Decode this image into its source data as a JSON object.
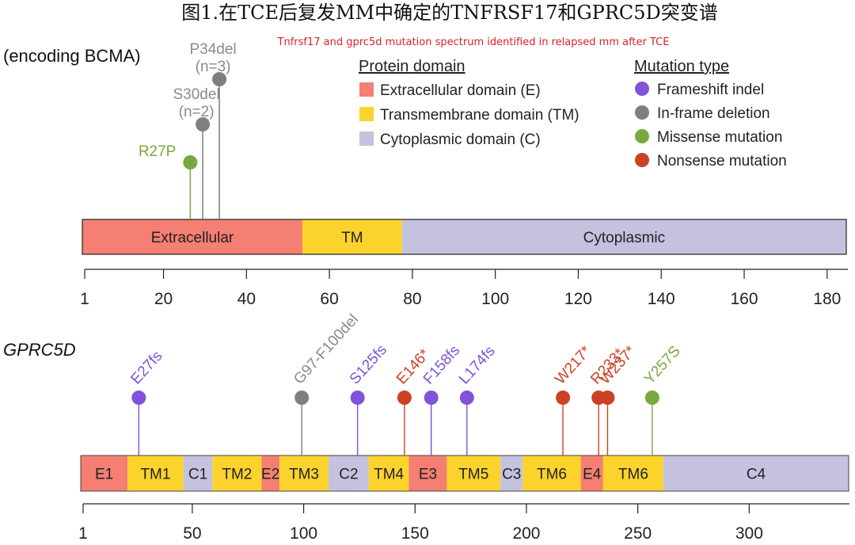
{
  "title_cn": "图1.在TCE后复发MM中确定的TNFRSF17和GPRC5D突变谱",
  "title_en": "Tnfrsf17 and gprc5d mutation spectrum identified in relapsed mm after TCE",
  "bcma_gene_label": "(encoding BCMA)",
  "gprc5d_gene_label": "GPRC5D",
  "legend_domain": {
    "title": "Protein domain",
    "items": [
      {
        "label": "Extracellular domain (E)",
        "color": "#f47f72"
      },
      {
        "label": "Transmembrane domain (TM)",
        "color": "#fcd32c"
      },
      {
        "label": "Cytoplasmic domain (C)",
        "color": "#c5c2e0"
      }
    ]
  },
  "legend_mutation": {
    "title": "Mutation type",
    "items": [
      {
        "label": "Frameshift indel",
        "color": "#8153d8"
      },
      {
        "label": "In-frame deletion",
        "color": "#7f7f7f"
      },
      {
        "label": "Missense mutation",
        "color": "#77a93e"
      },
      {
        "label": "Nonsense mutation",
        "color": "#cd4224"
      }
    ]
  },
  "colors": {
    "extracellular": "#f47f72",
    "transmembrane": "#fcd32c",
    "cytoplasmic": "#c5c2e0",
    "frameshift": "#8153d8",
    "inframe": "#7f7f7f",
    "missense": "#77a93e",
    "nonsense": "#cd4224"
  },
  "bcma": {
    "axis_min": 1,
    "axis_max": 185,
    "ticks": [
      1,
      20,
      40,
      60,
      80,
      100,
      120,
      140,
      160,
      180
    ],
    "tick_labels": [
      "1",
      "20",
      "40",
      "60",
      "80",
      "100",
      "120",
      "140",
      "160",
      "180"
    ],
    "domains": [
      {
        "label": "Extracellular",
        "start": 1,
        "end": 54,
        "type": "extracellular"
      },
      {
        "label": "TM",
        "start": 54,
        "end": 78,
        "type": "transmembrane"
      },
      {
        "label": "Cytoplasmic",
        "start": 78,
        "end": 185,
        "type": "cytoplasmic"
      }
    ],
    "mutations": [
      {
        "label": "R27P",
        "count": "",
        "position": 27,
        "type": "missense",
        "level": 1
      },
      {
        "label": "S30del",
        "count": "(n=2)",
        "position": 30,
        "type": "inframe",
        "level": 2
      },
      {
        "label": "P34del",
        "count": "(n=3)",
        "position": 34,
        "type": "inframe",
        "level": 3
      }
    ]
  },
  "gprc5d": {
    "axis_min": 1,
    "axis_max": 345,
    "ticks": [
      1,
      50,
      100,
      150,
      200,
      250,
      300
    ],
    "tick_labels": [
      "1",
      "50",
      "100",
      "150",
      "200",
      "250",
      "300"
    ],
    "domains": [
      {
        "label": "E1",
        "start": 1,
        "end": 22,
        "type": "extracellular"
      },
      {
        "label": "TM1",
        "start": 22,
        "end": 47,
        "type": "transmembrane"
      },
      {
        "label": "C1",
        "start": 47,
        "end": 60,
        "type": "cytoplasmic"
      },
      {
        "label": "TM2",
        "start": 60,
        "end": 82,
        "type": "transmembrane"
      },
      {
        "label": "E2",
        "start": 82,
        "end": 90,
        "type": "extracellular"
      },
      {
        "label": "TM3",
        "start": 90,
        "end": 112,
        "type": "transmembrane"
      },
      {
        "label": "C2",
        "start": 112,
        "end": 130,
        "type": "cytoplasmic"
      },
      {
        "label": "TM4",
        "start": 130,
        "end": 148,
        "type": "transmembrane"
      },
      {
        "label": "E3",
        "start": 148,
        "end": 165,
        "type": "extracellular"
      },
      {
        "label": "TM5",
        "start": 165,
        "end": 189,
        "type": "transmembrane"
      },
      {
        "label": "C3",
        "start": 189,
        "end": 199,
        "type": "cytoplasmic"
      },
      {
        "label": "TM6",
        "start": 199,
        "end": 225,
        "type": "transmembrane"
      },
      {
        "label": "E4",
        "start": 225,
        "end": 235,
        "type": "extracellular"
      },
      {
        "label": "TM6",
        "start": 235,
        "end": 262,
        "type": "transmembrane"
      },
      {
        "label": "C4",
        "start": 262,
        "end": 345,
        "type": "cytoplasmic"
      }
    ],
    "mutations": [
      {
        "label": "E27fs",
        "position": 27,
        "type": "frameshift"
      },
      {
        "label": "G97-F100del",
        "position": 100,
        "type": "inframe"
      },
      {
        "label": "S125fs",
        "position": 125,
        "type": "frameshift"
      },
      {
        "label": "E146*",
        "position": 146,
        "type": "nonsense"
      },
      {
        "label": "F158fs",
        "position": 158,
        "type": "frameshift"
      },
      {
        "label": "L174fs",
        "position": 174,
        "type": "frameshift"
      },
      {
        "label": "W217*",
        "position": 217,
        "type": "nonsense"
      },
      {
        "label": "R233*",
        "position": 233,
        "type": "nonsense"
      },
      {
        "label": "W237*",
        "position": 237,
        "type": "nonsense"
      },
      {
        "label": "Y257S",
        "position": 257,
        "type": "missense"
      }
    ]
  }
}
